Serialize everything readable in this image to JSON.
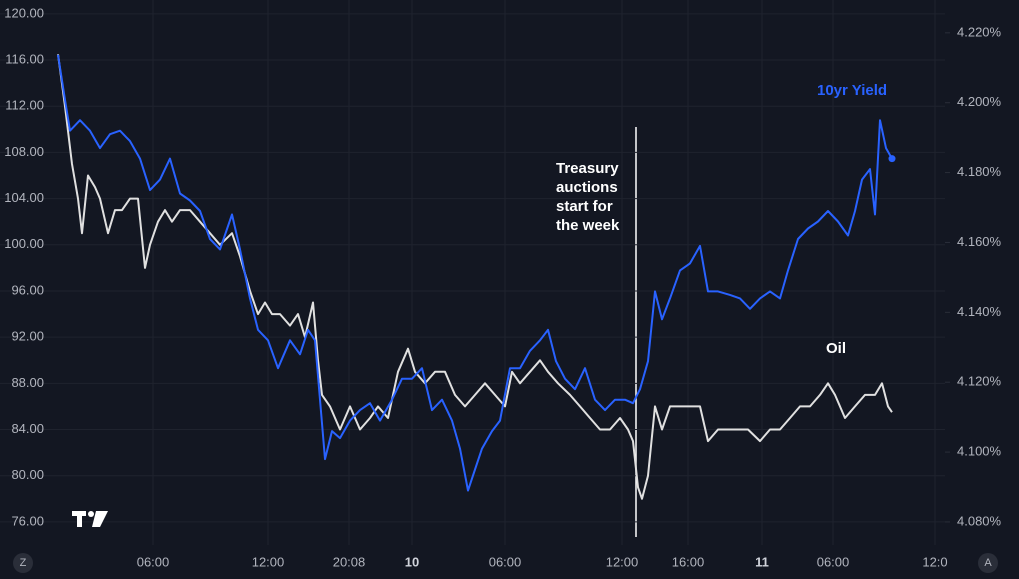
{
  "chart_data": {
    "type": "line",
    "xlim": [
      50,
      945
    ],
    "xticks": [
      {
        "value": 153,
        "label": "06:00"
      },
      {
        "value": 268,
        "label": "12:00"
      },
      {
        "value": 349,
        "label": "20:08"
      },
      {
        "value": 412,
        "label": "10"
      },
      {
        "value": 505,
        "label": "06:00"
      },
      {
        "value": 622,
        "label": "12:00"
      },
      {
        "value": 688,
        "label": "16:00"
      },
      {
        "value": 762,
        "label": "11"
      },
      {
        "value": 833,
        "label": "06:00"
      },
      {
        "value": 935,
        "label": "12:0"
      }
    ],
    "ylim": [
      74,
      121.2
    ],
    "yticks": [
      {
        "value": 76,
        "label": "76.00"
      },
      {
        "value": 80,
        "label": "80.00"
      },
      {
        "value": 84,
        "label": "84.00"
      },
      {
        "value": 88,
        "label": "88.00"
      },
      {
        "value": 92,
        "label": "92.00"
      },
      {
        "value": 96,
        "label": "96.00"
      },
      {
        "value": 100,
        "label": "100.00"
      },
      {
        "value": 104,
        "label": "104.00"
      },
      {
        "value": 108,
        "label": "108.00"
      },
      {
        "value": 112,
        "label": "112.00"
      },
      {
        "value": 116,
        "label": "116.00"
      },
      {
        "value": 120,
        "label": "120.00"
      }
    ],
    "y2lim": [
      4.0734,
      4.2294
    ],
    "y2ticks": [
      {
        "value": 4.08,
        "label": "4.080%"
      },
      {
        "value": 4.1,
        "label": "4.100%"
      },
      {
        "value": 4.12,
        "label": "4.120%"
      },
      {
        "value": 4.14,
        "label": "4.140%"
      },
      {
        "value": 4.16,
        "label": "4.160%"
      },
      {
        "value": 4.18,
        "label": "4.180%"
      },
      {
        "value": 4.2,
        "label": "4.200%"
      },
      {
        "value": 4.22,
        "label": "4.220%"
      }
    ],
    "grid": true,
    "series": [
      {
        "name": "Oil",
        "color": "#e0e0e0",
        "axis": "y",
        "x": [
          58,
          65,
          72,
          78,
          82,
          88,
          95,
          100,
          108,
          115,
          122,
          130,
          138,
          145,
          150,
          158,
          165,
          172,
          180,
          190,
          200,
          210,
          220,
          232,
          240,
          250,
          258,
          265,
          272,
          280,
          290,
          298,
          305,
          313,
          318,
          322,
          330,
          340,
          350,
          360,
          370,
          378,
          388,
          398,
          408,
          415,
          425,
          435,
          445,
          455,
          465,
          475,
          485,
          495,
          505,
          512,
          520,
          530,
          540,
          548,
          558,
          570,
          580,
          590,
          600,
          610,
          620,
          628,
          633,
          638,
          642,
          648,
          655,
          662,
          670,
          680,
          690,
          700,
          708,
          718,
          728,
          738,
          748,
          760,
          770,
          780,
          790,
          800,
          810,
          820,
          828,
          835,
          845,
          855,
          865,
          875,
          882,
          888,
          892
        ],
        "values": [
          116.5,
          112,
          107,
          104,
          101,
          106,
          105,
          104,
          101,
          103,
          103,
          104,
          104,
          98,
          100,
          102,
          103,
          102,
          103,
          103,
          102,
          101,
          100,
          101,
          99,
          96,
          94,
          95,
          94,
          94,
          93,
          94,
          92,
          95,
          90,
          87,
          86,
          84,
          86,
          84,
          85,
          86,
          85,
          89,
          91,
          89,
          88,
          89,
          89,
          87,
          86,
          87,
          88,
          87,
          86,
          89,
          88,
          89,
          90,
          89,
          88,
          87,
          86,
          85,
          84,
          84,
          85,
          84,
          83,
          79,
          78,
          80,
          86,
          84,
          86,
          86,
          86,
          86,
          83,
          84,
          84,
          84,
          84,
          83,
          84,
          84,
          85,
          86,
          86,
          87,
          88,
          87,
          85,
          86,
          87,
          87,
          88,
          86,
          85.5
        ]
      },
      {
        "name": "10yr Yield",
        "color": "#2962ff",
        "axis": "y2",
        "x": [
          58,
          65,
          70,
          80,
          90,
          100,
          110,
          120,
          130,
          140,
          150,
          160,
          170,
          180,
          190,
          200,
          210,
          220,
          232,
          240,
          250,
          258,
          268,
          278,
          290,
          300,
          308,
          315,
          320,
          325,
          332,
          340,
          350,
          360,
          370,
          380,
          392,
          402,
          412,
          422,
          432,
          442,
          452,
          460,
          468,
          475,
          482,
          492,
          500,
          510,
          520,
          530,
          540,
          548,
          556,
          565,
          575,
          585,
          595,
          605,
          615,
          625,
          633,
          640,
          648,
          655,
          662,
          670,
          680,
          690,
          700,
          708,
          718,
          730,
          740,
          750,
          760,
          770,
          780,
          788,
          798,
          808,
          818,
          828,
          838,
          848,
          855,
          862,
          870,
          875,
          880,
          886,
          892
        ],
        "values": [
          4.2137,
          4.2008,
          4.192,
          4.195,
          4.192,
          4.187,
          4.191,
          4.192,
          4.189,
          4.184,
          4.175,
          4.178,
          4.184,
          4.174,
          4.172,
          4.169,
          4.161,
          4.158,
          4.168,
          4.158,
          4.144,
          4.135,
          4.132,
          4.124,
          4.132,
          4.128,
          4.135,
          4.132,
          4.115,
          4.098,
          4.106,
          4.104,
          4.109,
          4.112,
          4.114,
          4.109,
          4.115,
          4.121,
          4.121,
          4.124,
          4.112,
          4.115,
          4.109,
          4.101,
          4.089,
          4.095,
          4.101,
          4.106,
          4.109,
          4.124,
          4.124,
          4.129,
          4.132,
          4.135,
          4.126,
          4.121,
          4.118,
          4.124,
          4.115,
          4.112,
          4.115,
          4.115,
          4.114,
          4.118,
          4.126,
          4.146,
          4.138,
          4.144,
          4.152,
          4.154,
          4.159,
          4.146,
          4.146,
          4.145,
          4.144,
          4.141,
          4.144,
          4.146,
          4.144,
          4.152,
          4.161,
          4.164,
          4.166,
          4.169,
          4.166,
          4.162,
          4.169,
          4.178,
          4.181,
          4.168,
          4.195,
          4.187,
          4.184
        ]
      }
    ],
    "annotations": [
      "10yr Yield",
      "Oil",
      "Treasury",
      "auctions",
      "start for",
      "the week"
    ]
  },
  "controls": [
    "Z",
    "A"
  ]
}
